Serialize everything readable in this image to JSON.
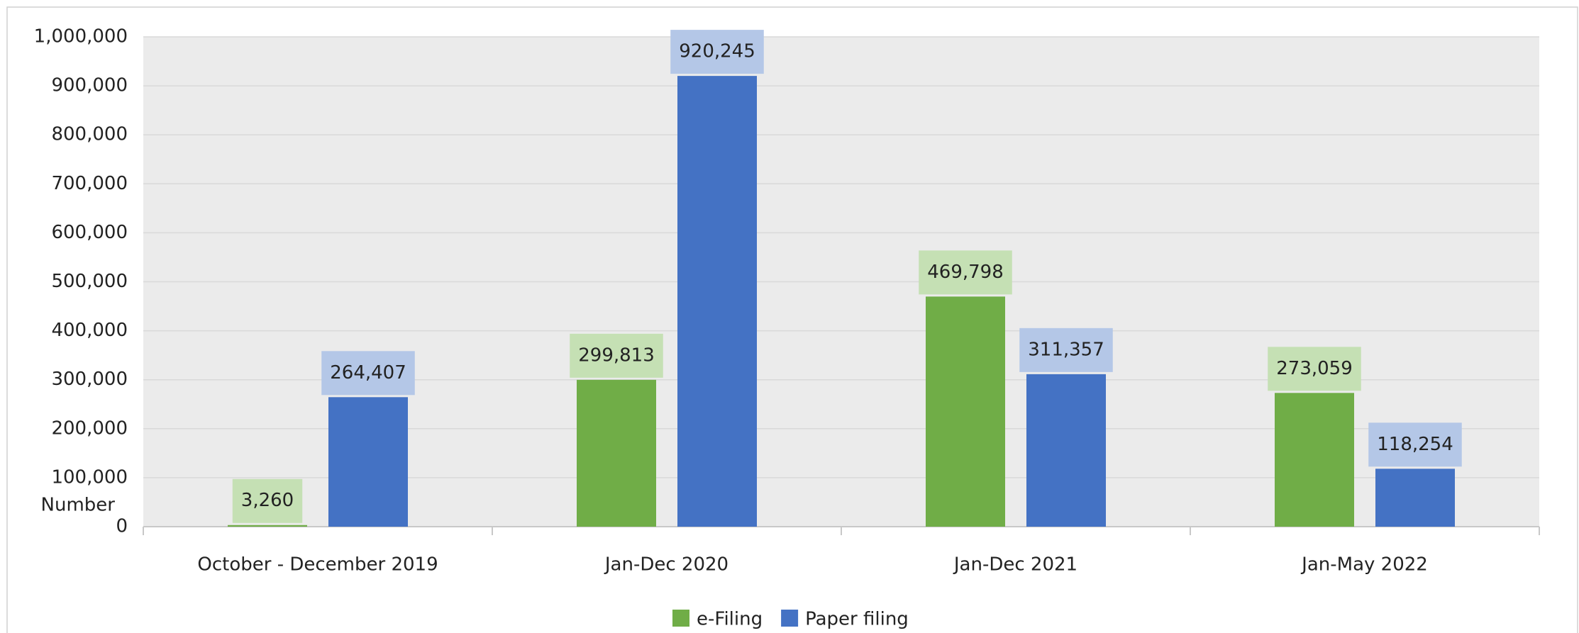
{
  "chart_data": {
    "type": "bar",
    "y_label": "Number",
    "categories": [
      "October - December 2019",
      "Jan-Dec 2020",
      "Jan-Dec 2021",
      "Jan-May 2022"
    ],
    "series": [
      {
        "name": "e-Filing",
        "color": "#70ad47",
        "label_bg": "#c5e0b4",
        "values": [
          3260,
          299813,
          469798,
          273059
        ],
        "value_labels": [
          "3,260",
          "299,813",
          "469,798",
          "273,059"
        ]
      },
      {
        "name": "Paper filing",
        "color": "#4472c4",
        "label_bg": "#b4c7e7",
        "values": [
          264407,
          920245,
          311357,
          118254
        ],
        "value_labels": [
          "264,407",
          "920,245",
          "311,357",
          "118,254"
        ]
      }
    ],
    "ylim": [
      0,
      1000000
    ],
    "yticks": [
      0,
      {
        "value": 100000,
        "label": "100,000"
      },
      {
        "value": 200000,
        "label": "200,000"
      },
      {
        "value": 300000,
        "label": "300,000"
      },
      {
        "value": 400000,
        "label": "400,000"
      },
      {
        "value": 500000,
        "label": "500,000"
      },
      {
        "value": 600000,
        "label": "600,000"
      },
      {
        "value": 700000,
        "label": "700,000"
      },
      {
        "value": 800000,
        "label": "800,000"
      },
      {
        "value": 900000,
        "label": "900,000"
      },
      {
        "value": 1000000,
        "label": "1,000,000"
      }
    ],
    "grid": true,
    "legend": "bottom"
  }
}
